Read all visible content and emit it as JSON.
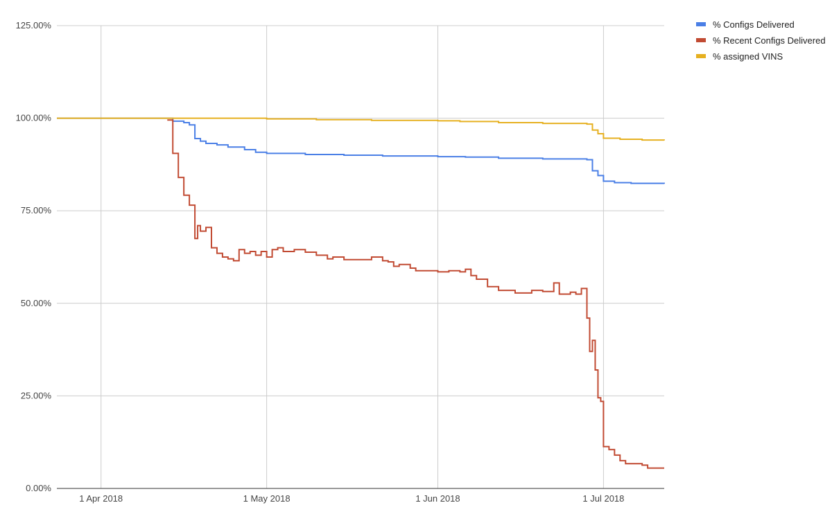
{
  "chart_data": {
    "type": "line",
    "title": "",
    "xlabel": "",
    "ylabel": "",
    "x_range": [
      "2018-03-24",
      "2018-07-12"
    ],
    "ylim": [
      0,
      125
    ],
    "y_ticks": [
      0,
      25,
      50,
      75,
      100,
      125
    ],
    "y_tick_labels": [
      "0.00%",
      "25.00%",
      "50.00%",
      "75.00%",
      "100.00%",
      "125.00%"
    ],
    "x_ticks": [
      "2018-04-01",
      "2018-05-01",
      "2018-06-01",
      "2018-07-01"
    ],
    "x_tick_labels": [
      "1 Apr 2018",
      "1 May 2018",
      "1 Jun 2018",
      "1 Jul 2018"
    ],
    "grid": true,
    "legend_position": "right",
    "step": true,
    "series": [
      {
        "name": "% Configs Delivered",
        "color": "#4a7fe6",
        "points": [
          [
            "2018-03-24",
            100.0
          ],
          [
            "2018-04-13",
            100.0
          ],
          [
            "2018-04-14",
            99.2
          ],
          [
            "2018-04-16",
            98.8
          ],
          [
            "2018-04-17",
            98.2
          ],
          [
            "2018-04-18",
            94.5
          ],
          [
            "2018-04-19",
            93.8
          ],
          [
            "2018-04-20",
            93.2
          ],
          [
            "2018-04-22",
            92.8
          ],
          [
            "2018-04-24",
            92.2
          ],
          [
            "2018-04-27",
            91.5
          ],
          [
            "2018-04-29",
            90.8
          ],
          [
            "2018-05-01",
            90.5
          ],
          [
            "2018-05-08",
            90.2
          ],
          [
            "2018-05-15",
            90.0
          ],
          [
            "2018-05-22",
            89.8
          ],
          [
            "2018-06-01",
            89.6
          ],
          [
            "2018-06-06",
            89.5
          ],
          [
            "2018-06-12",
            89.2
          ],
          [
            "2018-06-20",
            89.0
          ],
          [
            "2018-06-28",
            88.8
          ],
          [
            "2018-06-29",
            85.8
          ],
          [
            "2018-06-30",
            84.5
          ],
          [
            "2018-07-01",
            83.0
          ],
          [
            "2018-07-03",
            82.6
          ],
          [
            "2018-07-06",
            82.4
          ],
          [
            "2018-07-12",
            82.3
          ]
        ]
      },
      {
        "name": "% Recent Configs Delivered",
        "color": "#c14a32",
        "points": [
          [
            "2018-04-13",
            99.5
          ],
          [
            "2018-04-14",
            90.5
          ],
          [
            "2018-04-15",
            84.0
          ],
          [
            "2018-04-16",
            79.2
          ],
          [
            "2018-04-17",
            76.5
          ],
          [
            "2018-04-18",
            67.5
          ],
          [
            "2018-04-18.5",
            71.0
          ],
          [
            "2018-04-19",
            69.5
          ],
          [
            "2018-04-20",
            70.5
          ],
          [
            "2018-04-21",
            65.0
          ],
          [
            "2018-04-22",
            63.5
          ],
          [
            "2018-04-23",
            62.5
          ],
          [
            "2018-04-24",
            62.0
          ],
          [
            "2018-04-25",
            61.5
          ],
          [
            "2018-04-26",
            64.5
          ],
          [
            "2018-04-27",
            63.5
          ],
          [
            "2018-04-28",
            64.0
          ],
          [
            "2018-04-29",
            63.0
          ],
          [
            "2018-04-30",
            64.0
          ],
          [
            "2018-05-01",
            62.5
          ],
          [
            "2018-05-02",
            64.5
          ],
          [
            "2018-05-03",
            65.0
          ],
          [
            "2018-05-04",
            64.0
          ],
          [
            "2018-05-06",
            64.5
          ],
          [
            "2018-05-08",
            63.8
          ],
          [
            "2018-05-10",
            63.0
          ],
          [
            "2018-05-12",
            62.0
          ],
          [
            "2018-05-13",
            62.5
          ],
          [
            "2018-05-15",
            61.8
          ],
          [
            "2018-05-20",
            62.5
          ],
          [
            "2018-05-22",
            61.5
          ],
          [
            "2018-05-23",
            61.2
          ],
          [
            "2018-05-24",
            60.0
          ],
          [
            "2018-05-25",
            60.5
          ],
          [
            "2018-05-27",
            59.5
          ],
          [
            "2018-05-28",
            58.8
          ],
          [
            "2018-06-01",
            58.5
          ],
          [
            "2018-06-03",
            58.8
          ],
          [
            "2018-06-05",
            58.5
          ],
          [
            "2018-06-06",
            59.2
          ],
          [
            "2018-06-07",
            57.5
          ],
          [
            "2018-06-08",
            56.5
          ],
          [
            "2018-06-10",
            54.5
          ],
          [
            "2018-06-12",
            53.5
          ],
          [
            "2018-06-15",
            52.8
          ],
          [
            "2018-06-18",
            53.5
          ],
          [
            "2018-06-20",
            53.2
          ],
          [
            "2018-06-22",
            55.5
          ],
          [
            "2018-06-23",
            52.5
          ],
          [
            "2018-06-25",
            53.0
          ],
          [
            "2018-06-26",
            52.5
          ],
          [
            "2018-06-27",
            54.0
          ],
          [
            "2018-06-28",
            46.0
          ],
          [
            "2018-06-28.5",
            37.0
          ],
          [
            "2018-06-29",
            40.0
          ],
          [
            "2018-06-29.5",
            32.0
          ],
          [
            "2018-06-30",
            24.5
          ],
          [
            "2018-06-30.5",
            23.5
          ],
          [
            "2018-07-01",
            11.3
          ],
          [
            "2018-07-02",
            10.5
          ],
          [
            "2018-07-03",
            9.0
          ],
          [
            "2018-07-04",
            7.5
          ],
          [
            "2018-07-05",
            6.7
          ],
          [
            "2018-07-08",
            6.3
          ],
          [
            "2018-07-09",
            5.5
          ],
          [
            "2018-07-12",
            5.5
          ]
        ]
      },
      {
        "name": "% assigned VINS",
        "color": "#e6b020",
        "points": [
          [
            "2018-03-24",
            100.0
          ],
          [
            "2018-04-18",
            100.0
          ],
          [
            "2018-05-01",
            99.8
          ],
          [
            "2018-05-10",
            99.6
          ],
          [
            "2018-05-20",
            99.4
          ],
          [
            "2018-06-01",
            99.3
          ],
          [
            "2018-06-05",
            99.1
          ],
          [
            "2018-06-12",
            98.8
          ],
          [
            "2018-06-20",
            98.6
          ],
          [
            "2018-06-28",
            98.4
          ],
          [
            "2018-06-29",
            96.8
          ],
          [
            "2018-06-30",
            95.8
          ],
          [
            "2018-07-01",
            94.6
          ],
          [
            "2018-07-04",
            94.3
          ],
          [
            "2018-07-08",
            94.1
          ],
          [
            "2018-07-12",
            94.0
          ]
        ]
      }
    ]
  }
}
